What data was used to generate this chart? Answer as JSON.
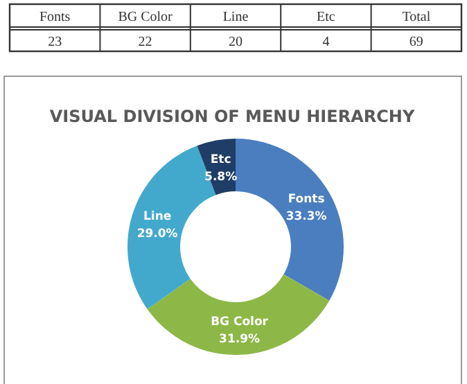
{
  "chart_data": {
    "type": "donut",
    "title": "VISUAL DIVISION OF MENU HIERARCHY",
    "categories": [
      "Fonts",
      "BG Color",
      "Line",
      "Etc"
    ],
    "values": [
      33.3,
      31.9,
      29.0,
      5.8
    ],
    "colors": [
      "#4a7ebf",
      "#8db848",
      "#43a9cc",
      "#1f3d66"
    ],
    "value_labels": [
      "33.3%",
      "31.9%",
      "29.0%",
      "5.8%"
    ],
    "annotations": [
      "Total",
      "23",
      "22",
      "20",
      "4",
      "69"
    ]
  }
}
